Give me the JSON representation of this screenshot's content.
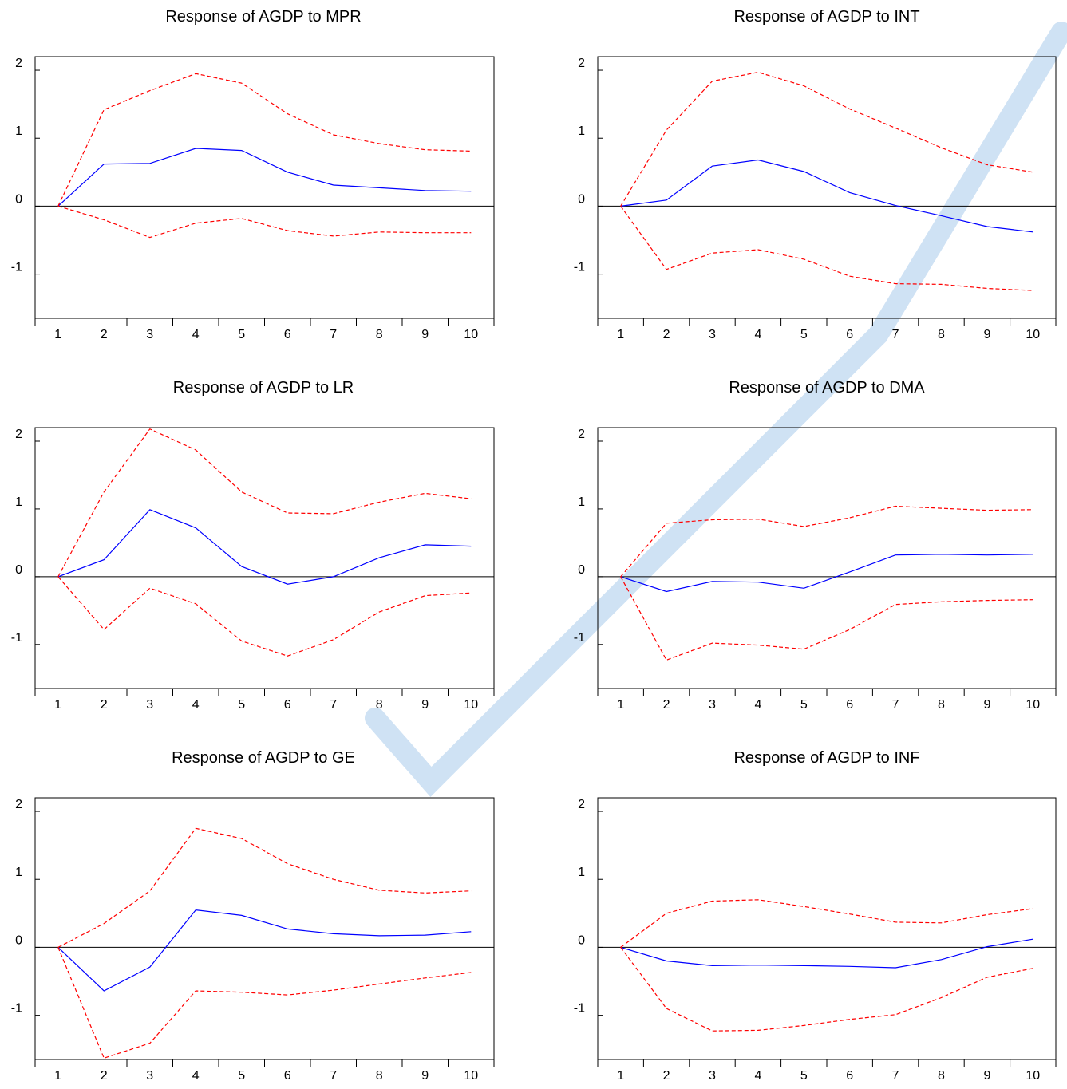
{
  "chart_data": [
    {
      "type": "line",
      "title": "Response of AGDP to MPR",
      "x": [
        1,
        2,
        3,
        4,
        5,
        6,
        7,
        8,
        9,
        10
      ],
      "yticks": [
        -1,
        0,
        1,
        2
      ],
      "ylim": [
        -1.65,
        2.2
      ],
      "series": [
        {
          "role": "response",
          "values": [
            0,
            0.62,
            0.63,
            0.85,
            0.82,
            0.5,
            0.31,
            0.27,
            0.23,
            0.22
          ]
        },
        {
          "role": "upper",
          "values": [
            0,
            1.42,
            1.7,
            1.95,
            1.81,
            1.36,
            1.05,
            0.92,
            0.83,
            0.81
          ]
        },
        {
          "role": "lower",
          "values": [
            0,
            -0.2,
            -0.46,
            -0.25,
            -0.18,
            -0.36,
            -0.44,
            -0.38,
            -0.39,
            -0.39
          ]
        }
      ]
    },
    {
      "type": "line",
      "title": "Response of AGDP to INT",
      "x": [
        1,
        2,
        3,
        4,
        5,
        6,
        7,
        8,
        9,
        10
      ],
      "yticks": [
        -1,
        0,
        1,
        2
      ],
      "ylim": [
        -1.65,
        2.2
      ],
      "series": [
        {
          "role": "response",
          "values": [
            0,
            0.09,
            0.59,
            0.68,
            0.51,
            0.2,
            0.01,
            -0.14,
            -0.3,
            -0.38
          ]
        },
        {
          "role": "upper",
          "values": [
            0,
            1.12,
            1.84,
            1.97,
            1.77,
            1.43,
            1.15,
            0.86,
            0.61,
            0.5
          ]
        },
        {
          "role": "lower",
          "values": [
            0,
            -0.93,
            -0.69,
            -0.64,
            -0.78,
            -1.03,
            -1.14,
            -1.15,
            -1.21,
            -1.24
          ]
        }
      ]
    },
    {
      "type": "line",
      "title": "Response of AGDP to LR",
      "x": [
        1,
        2,
        3,
        4,
        5,
        6,
        7,
        8,
        9,
        10
      ],
      "yticks": [
        -1,
        0,
        1,
        2
      ],
      "ylim": [
        -1.65,
        2.2
      ],
      "series": [
        {
          "role": "response",
          "values": [
            0,
            0.25,
            0.99,
            0.72,
            0.15,
            -0.11,
            0.0,
            0.28,
            0.47,
            0.45
          ]
        },
        {
          "role": "upper",
          "values": [
            0,
            1.25,
            2.18,
            1.87,
            1.25,
            0.94,
            0.93,
            1.1,
            1.23,
            1.15
          ]
        },
        {
          "role": "lower",
          "values": [
            0,
            -0.78,
            -0.17,
            -0.4,
            -0.95,
            -1.17,
            -0.93,
            -0.52,
            -0.28,
            -0.24
          ]
        }
      ]
    },
    {
      "type": "line",
      "title": "Response of AGDP to DMA",
      "x": [
        1,
        2,
        3,
        4,
        5,
        6,
        7,
        8,
        9,
        10
      ],
      "yticks": [
        -1,
        0,
        1,
        2
      ],
      "ylim": [
        -1.65,
        2.2
      ],
      "series": [
        {
          "role": "response",
          "values": [
            0,
            -0.22,
            -0.07,
            -0.08,
            -0.17,
            0.07,
            0.32,
            0.33,
            0.32,
            0.33
          ]
        },
        {
          "role": "upper",
          "values": [
            0,
            0.79,
            0.84,
            0.85,
            0.74,
            0.87,
            1.04,
            1.01,
            0.98,
            0.99
          ]
        },
        {
          "role": "lower",
          "values": [
            0,
            -1.23,
            -0.98,
            -1.01,
            -1.07,
            -0.78,
            -0.41,
            -0.37,
            -0.35,
            -0.34
          ]
        }
      ]
    },
    {
      "type": "line",
      "title": "Response of AGDP to GE",
      "x": [
        1,
        2,
        3,
        4,
        5,
        6,
        7,
        8,
        9,
        10
      ],
      "yticks": [
        -1,
        0,
        1,
        2
      ],
      "ylim": [
        -1.65,
        2.2
      ],
      "series": [
        {
          "role": "response",
          "values": [
            0,
            -0.64,
            -0.29,
            0.55,
            0.47,
            0.27,
            0.2,
            0.17,
            0.18,
            0.23
          ]
        },
        {
          "role": "upper",
          "values": [
            0,
            0.35,
            0.83,
            1.75,
            1.6,
            1.23,
            1.0,
            0.84,
            0.8,
            0.83
          ]
        },
        {
          "role": "lower",
          "values": [
            0,
            -1.63,
            -1.41,
            -0.64,
            -0.66,
            -0.7,
            -0.63,
            -0.54,
            -0.45,
            -0.37
          ]
        }
      ]
    },
    {
      "type": "line",
      "title": "Response of AGDP to INF",
      "x": [
        1,
        2,
        3,
        4,
        5,
        6,
        7,
        8,
        9,
        10
      ],
      "yticks": [
        -1,
        0,
        1,
        2
      ],
      "ylim": [
        -1.65,
        2.2
      ],
      "series": [
        {
          "role": "response",
          "values": [
            0,
            -0.2,
            -0.27,
            -0.26,
            -0.27,
            -0.28,
            -0.3,
            -0.18,
            0.01,
            0.12
          ]
        },
        {
          "role": "upper",
          "values": [
            0,
            0.5,
            0.68,
            0.7,
            0.6,
            0.49,
            0.37,
            0.36,
            0.48,
            0.57
          ]
        },
        {
          "role": "lower",
          "values": [
            0,
            -0.9,
            -1.23,
            -1.22,
            -1.15,
            -1.06,
            -0.99,
            -0.74,
            -0.44,
            -0.31
          ]
        }
      ]
    }
  ],
  "colors": {
    "response": "#0000ff",
    "band": "#ff0000",
    "zero_line": "#000000",
    "watermark": "#9ec5ea"
  }
}
